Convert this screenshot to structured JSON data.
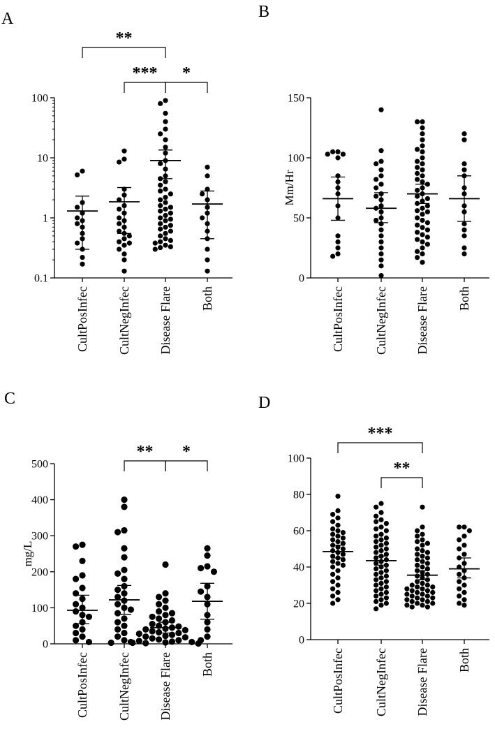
{
  "chart_data": [
    {
      "type": "scatter",
      "panel_label": "A",
      "ylabel": "",
      "yscale": "log",
      "ylim": [
        0.1,
        100
      ],
      "yticks": [
        0.1,
        1,
        10,
        100
      ],
      "ytick_labels": [
        "0.1",
        "1",
        "10",
        "100"
      ],
      "categories": [
        "CultPosInfec",
        "CultNegInfec",
        "Disease Flare",
        "Both"
      ],
      "series": [
        {
          "category": "CultPosInfec",
          "values": [
            6.0,
            5.2,
            1.8,
            1.5,
            1.2,
            1.0,
            0.9,
            0.8,
            0.7,
            0.55,
            0.45,
            0.38,
            0.3,
            0.22,
            0.17
          ],
          "mean": 1.3,
          "error": [
            0.3,
            2.3
          ]
        },
        {
          "category": "CultNegInfec",
          "values": [
            13,
            9.5,
            8.5,
            3.0,
            2.4,
            2.0,
            1.6,
            1.4,
            1.2,
            1.0,
            0.9,
            0.8,
            0.7,
            0.6,
            0.55,
            0.5,
            0.45,
            0.4,
            0.38,
            0.35,
            0.3,
            0.25,
            0.2,
            0.13
          ],
          "mean": 1.85,
          "error": [
            0.55,
            3.2
          ]
        },
        {
          "category": "Disease Flare",
          "values": [
            90,
            80,
            55,
            40,
            30,
            25,
            20,
            15,
            12,
            9,
            8,
            6.5,
            5,
            4.5,
            4,
            3.5,
            3,
            2.8,
            2.5,
            2.2,
            2.0,
            1.8,
            1.6,
            1.5,
            1.4,
            1.3,
            1.2,
            1.1,
            1.0,
            0.95,
            0.9,
            0.8,
            0.75,
            0.7,
            0.65,
            0.6,
            0.55,
            0.5,
            0.45,
            0.42,
            0.4,
            0.38,
            0.35,
            0.33,
            0.32,
            0.3
          ],
          "mean": 9.0,
          "error": [
            4.5,
            13.5
          ]
        },
        {
          "category": "Both",
          "values": [
            7.0,
            5.0,
            3.0,
            2.5,
            2.0,
            1.5,
            1.2,
            1.0,
            0.8,
            0.6,
            0.45,
            0.3,
            0.2,
            0.13
          ],
          "mean": 1.7,
          "error": [
            0.45,
            2.8
          ]
        }
      ],
      "significance": [
        {
          "from": "CultPosInfec",
          "to": "Disease Flare",
          "label": "**"
        },
        {
          "from": "CultNegInfec",
          "to": "Disease Flare",
          "label": "***"
        },
        {
          "from": "Disease Flare",
          "to": "Both",
          "label": "*"
        }
      ]
    },
    {
      "type": "scatter",
      "panel_label": "B",
      "ylabel": "Mm/Hr",
      "yscale": "linear",
      "ylim": [
        0,
        150
      ],
      "yticks": [
        0,
        50,
        100,
        150
      ],
      "ytick_labels": [
        "0",
        "50",
        "100",
        "150"
      ],
      "categories": [
        "CultPosInfec",
        "CultNegInfec",
        "Disease Flare",
        "Both"
      ],
      "series": [
        {
          "category": "CultPosInfec",
          "values": [
            105,
            105,
            103,
            103,
            100,
            85,
            80,
            75,
            70,
            60,
            50,
            35,
            30,
            25,
            20,
            18
          ],
          "mean": 66,
          "error": [
            48,
            84
          ]
        },
        {
          "category": "CultNegInfec",
          "values": [
            140,
            106,
            97,
            95,
            90,
            85,
            82,
            78,
            75,
            70,
            68,
            65,
            60,
            58,
            55,
            50,
            48,
            45,
            40,
            35,
            30,
            25,
            20,
            15,
            10,
            2
          ],
          "mean": 58,
          "error": [
            46,
            71
          ]
        },
        {
          "category": "Disease Flare",
          "values": [
            130,
            130,
            125,
            120,
            115,
            110,
            107,
            105,
            100,
            97,
            95,
            92,
            90,
            87,
            85,
            82,
            80,
            78,
            75,
            73,
            70,
            68,
            66,
            64,
            62,
            60,
            58,
            56,
            55,
            53,
            50,
            48,
            46,
            44,
            42,
            40,
            38,
            36,
            34,
            32,
            30,
            28,
            25,
            22,
            20,
            17,
            13
          ],
          "mean": 70,
          "error": [
            62,
            78
          ]
        },
        {
          "category": "Both",
          "values": [
            120,
            115,
            95,
            90,
            85,
            75,
            70,
            60,
            55,
            45,
            40,
            35,
            25,
            20
          ],
          "mean": 66,
          "error": [
            47,
            85
          ]
        }
      ]
    },
    {
      "type": "scatter",
      "panel_label": "C",
      "ylabel": "mg/L",
      "yscale": "linear",
      "ylim": [
        0,
        500
      ],
      "yticks": [
        0,
        100,
        200,
        300,
        400,
        500
      ],
      "ytick_labels": [
        "0",
        "100",
        "200",
        "300",
        "400",
        "500"
      ],
      "categories": [
        "CultPosInfec",
        "CultNegInfec",
        "Disease Flare",
        "Both"
      ],
      "series": [
        {
          "category": "CultPosInfec",
          "values": [
            275,
            270,
            230,
            190,
            180,
            155,
            140,
            125,
            110,
            100,
            90,
            80,
            75,
            60,
            50,
            40,
            30,
            20,
            10,
            5
          ],
          "mean": 93,
          "error": [
            56,
            135
          ]
        },
        {
          "category": "CultNegInfec",
          "values": [
            400,
            380,
            315,
            310,
            265,
            240,
            205,
            195,
            180,
            160,
            150,
            140,
            130,
            120,
            110,
            100,
            95,
            85,
            70,
            60,
            50,
            40,
            30,
            20,
            10,
            5,
            3
          ],
          "mean": 122,
          "error": [
            82,
            162
          ]
        },
        {
          "category": "Disease Flare",
          "values": [
            220,
            140,
            130,
            120,
            110,
            100,
            90,
            85,
            80,
            75,
            70,
            65,
            60,
            55,
            50,
            48,
            45,
            42,
            40,
            38,
            35,
            32,
            30,
            28,
            25,
            22,
            20,
            18,
            15,
            12,
            10,
            8,
            6,
            5,
            4,
            3,
            2,
            1
          ],
          "mean": 45,
          "error": [
            30,
            60
          ]
        },
        {
          "category": "Both",
          "values": [
            265,
            245,
            215,
            210,
            200,
            160,
            145,
            130,
            110,
            80,
            60,
            40,
            20,
            10
          ],
          "mean": 118,
          "error": [
            68,
            168
          ]
        }
      ],
      "significance": [
        {
          "from": "CultNegInfec",
          "to": "Disease Flare",
          "label": "**"
        },
        {
          "from": "Disease Flare",
          "to": "Both",
          "label": "*"
        }
      ]
    },
    {
      "type": "scatter",
      "panel_label": "D",
      "ylabel": "",
      "yscale": "linear",
      "ylim": [
        0,
        100
      ],
      "yticks": [
        0,
        20,
        40,
        60,
        80,
        100
      ],
      "ytick_labels": [
        "0",
        "20",
        "40",
        "60",
        "80",
        "100"
      ],
      "categories": [
        "CultPosInfec",
        "CultNegInfec",
        "Disease Flare",
        "Both"
      ],
      "series": [
        {
          "category": "CultPosInfec",
          "values": [
            79,
            71,
            69,
            67,
            65,
            63,
            61,
            60,
            59,
            58,
            57,
            56,
            55,
            54,
            53,
            52,
            51,
            50,
            49,
            48,
            47,
            46,
            45,
            44,
            43,
            42,
            41,
            40,
            38,
            36,
            34,
            32,
            30,
            28,
            26,
            24,
            22,
            20
          ],
          "mean": 48.5,
          "error": [
            45,
            52
          ]
        },
        {
          "category": "CultNegInfec",
          "values": [
            75,
            73,
            70,
            68,
            66,
            65,
            64,
            62,
            61,
            60,
            58,
            57,
            56,
            55,
            54,
            53,
            52,
            51,
            50,
            49,
            48,
            47,
            46,
            45,
            44,
            43,
            42,
            41,
            40,
            39,
            38,
            37,
            36,
            35,
            34,
            33,
            32,
            31,
            30,
            29,
            28,
            27,
            26,
            25,
            24,
            23,
            22,
            21,
            20,
            19,
            17
          ],
          "mean": 43.5,
          "error": [
            41,
            46
          ]
        },
        {
          "category": "Disease Flare",
          "values": [
            73,
            62,
            60,
            58,
            57,
            55,
            54,
            53,
            52,
            50,
            49,
            48,
            47,
            46,
            45,
            44,
            43,
            42,
            41,
            40,
            39,
            38,
            37,
            36,
            35,
            34,
            33,
            32,
            31,
            30,
            30,
            29,
            29,
            28,
            28,
            27,
            27,
            26,
            26,
            25,
            25,
            24,
            24,
            23,
            23,
            22,
            22,
            21,
            21,
            20,
            20,
            19,
            19,
            18,
            18
          ],
          "mean": 35.5,
          "error": [
            33,
            38
          ]
        },
        {
          "category": "Both",
          "values": [
            62,
            62,
            60,
            57,
            55,
            52,
            50,
            47,
            45,
            42,
            40,
            38,
            36,
            34,
            32,
            30,
            28,
            26,
            24,
            22,
            20,
            19
          ],
          "mean": 39,
          "error": [
            34,
            45
          ]
        }
      ],
      "significance": [
        {
          "from": "CultPosInfec",
          "to": "Disease Flare",
          "label": "***"
        },
        {
          "from": "CultNegInfec",
          "to": "Disease Flare",
          "label": "**"
        }
      ]
    }
  ]
}
